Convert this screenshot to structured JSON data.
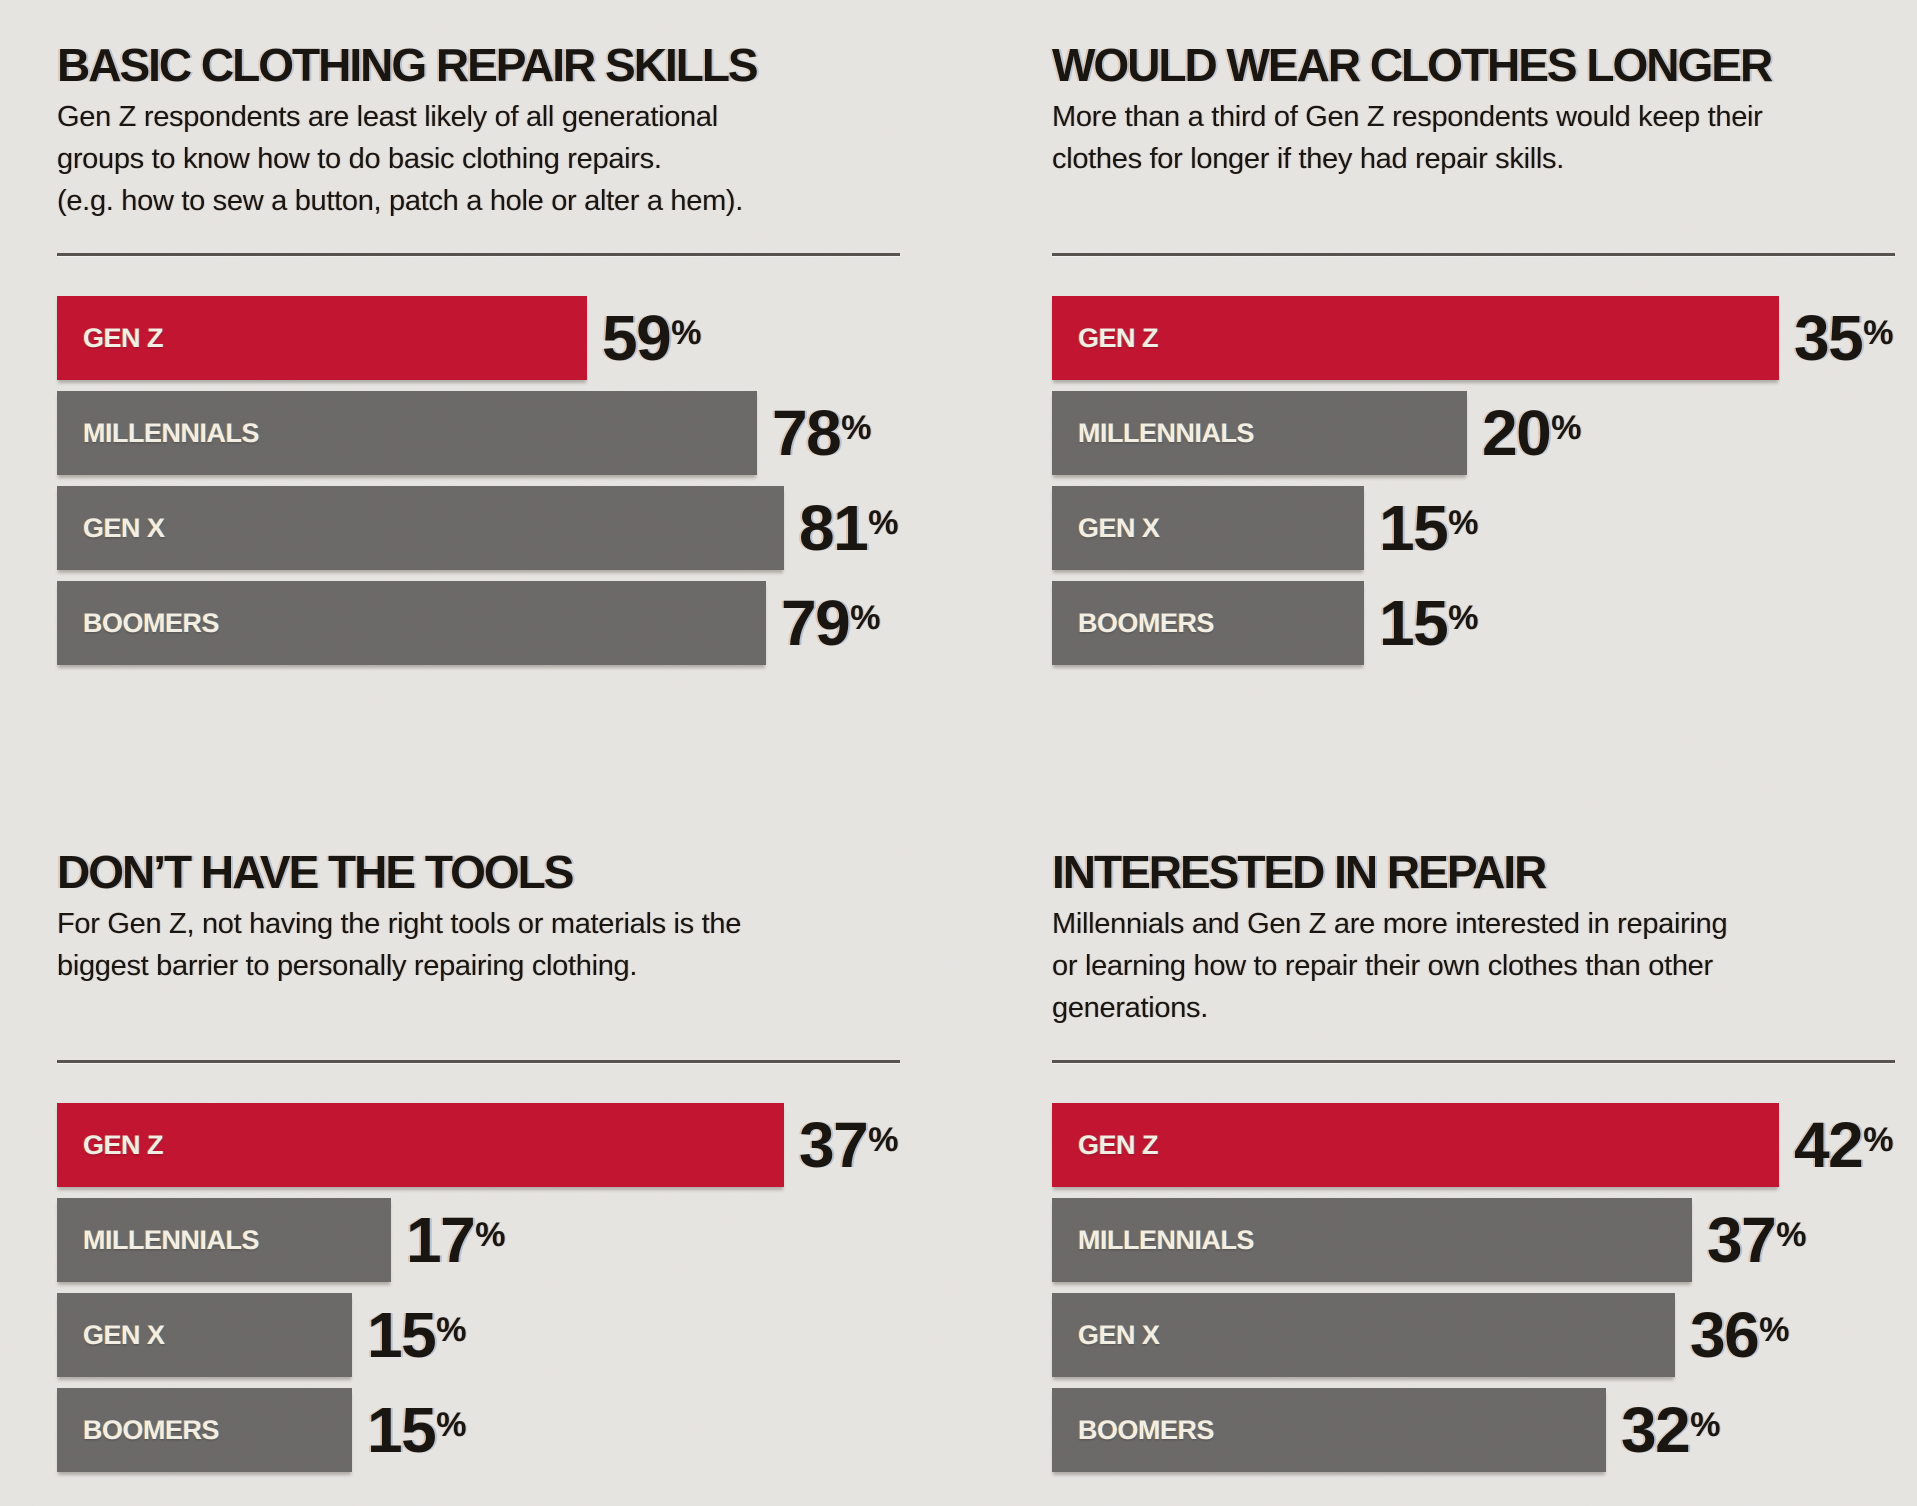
{
  "colors": {
    "background": "#e9e7e4",
    "accent_red": "#c41230",
    "bar_gray": "#6b6968",
    "ink": "#16130f",
    "rule": "#56524e",
    "bar_label_cream": "#f6f1e6"
  },
  "chart_data": [
    {
      "id": "basic-clothing-repair-skills",
      "type": "bar",
      "orientation": "horizontal",
      "legend_position": "none",
      "grid": false,
      "title": "BASIC CLOTHING REPAIR SKILLS",
      "description_lines": [
        "Gen Z respondents are least likely of all generational",
        "groups to know how to do basic clothing repairs.",
        "(e.g. how to sew a button, patch a hole or alter a hem)."
      ],
      "categories": [
        "GEN Z",
        "MILLENNIALS",
        "GEN X",
        "BOOMERS"
      ],
      "values": [
        59,
        78,
        81,
        79
      ],
      "unit": "%",
      "highlight_category": "GEN Z",
      "value_label_position": "end-of-bar",
      "xlim": [
        0,
        81
      ]
    },
    {
      "id": "would-wear-clothes-longer",
      "type": "bar",
      "orientation": "horizontal",
      "legend_position": "none",
      "grid": false,
      "title": "WOULD WEAR CLOTHES LONGER",
      "description_lines": [
        "More than a third of Gen Z respondents would keep their",
        "clothes for longer if they had repair skills."
      ],
      "categories": [
        "GEN Z",
        "MILLENNIALS",
        "GEN X",
        "BOOMERS"
      ],
      "values": [
        35,
        20,
        15,
        15
      ],
      "unit": "%",
      "highlight_category": "GEN Z",
      "value_label_position": "end-of-bar",
      "xlim": [
        0,
        35
      ]
    },
    {
      "id": "dont-have-the-tools",
      "type": "bar",
      "orientation": "horizontal",
      "legend_position": "none",
      "grid": false,
      "title": "DON’T HAVE THE TOOLS",
      "description_lines": [
        "For Gen Z, not having the right tools or materials is the",
        "biggest barrier to personally repairing clothing."
      ],
      "categories": [
        "GEN Z",
        "MILLENNIALS",
        "GEN X",
        "BOOMERS"
      ],
      "values": [
        37,
        17,
        15,
        15
      ],
      "unit": "%",
      "highlight_category": "GEN Z",
      "value_label_position": "end-of-bar",
      "xlim": [
        0,
        37
      ]
    },
    {
      "id": "interested-in-repair",
      "type": "bar",
      "orientation": "horizontal",
      "legend_position": "none",
      "grid": false,
      "title": "INTERESTED IN REPAIR",
      "description_lines": [
        "Millennials and Gen Z are more interested in repairing",
        "or learning how to repair their own clothes than other",
        "generations."
      ],
      "categories": [
        "GEN Z",
        "MILLENNIALS",
        "GEN X",
        "BOOMERS"
      ],
      "values": [
        42,
        37,
        36,
        32
      ],
      "unit": "%",
      "highlight_category": "GEN Z",
      "value_label_position": "end-of-bar",
      "xlim": [
        0,
        42
      ]
    }
  ]
}
